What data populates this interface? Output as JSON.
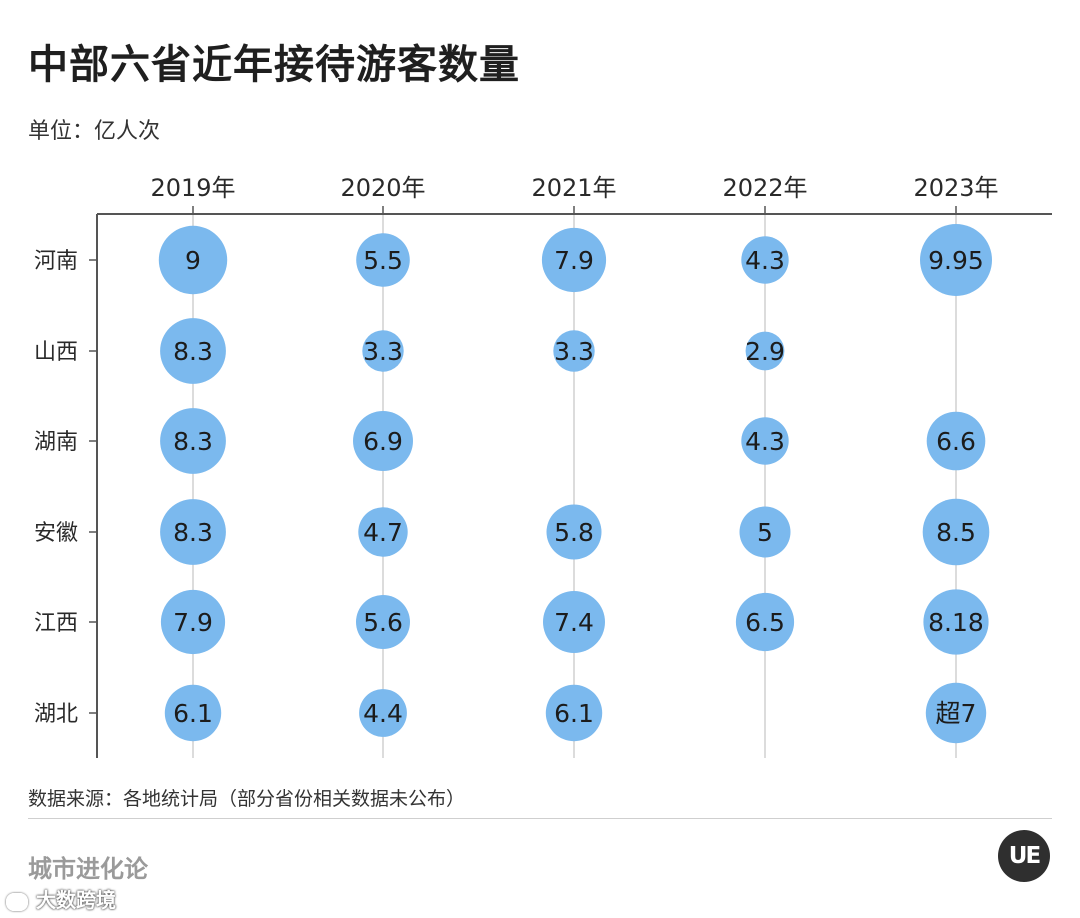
{
  "title": "中部六省近年接待游客数量",
  "unit_label": "单位：亿人次",
  "source": "数据来源：各地统计局（部分省份相关数据未公布）",
  "brand": "城市进化论",
  "brand_logo": "UE",
  "corner_mark": "大数跨境",
  "colors": {
    "bubble": "#7bb9ee",
    "axis": "#555555",
    "gridline": "#d0d0d0"
  },
  "chart_data": {
    "type": "bubble",
    "title": "中部六省近年接待游客数量",
    "ylabel": "单位：亿人次",
    "columns": [
      "2019年",
      "2020年",
      "2021年",
      "2022年",
      "2023年"
    ],
    "rows": [
      "河南",
      "山西",
      "湖南",
      "安徽",
      "江西",
      "湖北"
    ],
    "values": [
      [
        9,
        5.5,
        7.9,
        4.3,
        9.95
      ],
      [
        8.3,
        3.3,
        3.3,
        2.9,
        null
      ],
      [
        8.3,
        6.9,
        null,
        4.3,
        6.6
      ],
      [
        8.3,
        4.7,
        5.8,
        5,
        8.5
      ],
      [
        7.9,
        5.6,
        7.4,
        6.5,
        8.18
      ],
      [
        6.1,
        4.4,
        6.1,
        null,
        7
      ]
    ],
    "labels": [
      [
        "9",
        "5.5",
        "7.9",
        "4.3",
        "9.95"
      ],
      [
        "8.3",
        "3.3",
        "3.3",
        "2.9",
        ""
      ],
      [
        "8.3",
        "6.9",
        "",
        "4.3",
        "6.6"
      ],
      [
        "8.3",
        "4.7",
        "5.8",
        "5",
        "8.5"
      ],
      [
        "7.9",
        "5.6",
        "7.4",
        "6.5",
        "8.18"
      ],
      [
        "6.1",
        "4.4",
        "6.1",
        "",
        "超7"
      ]
    ],
    "grid": true,
    "legend": "none"
  }
}
